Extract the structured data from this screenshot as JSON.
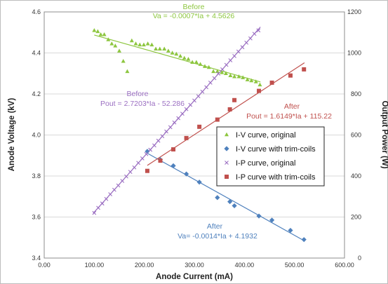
{
  "chart_data": {
    "type": "scatter",
    "xlabel": "Anode Current (mA)",
    "ylabel_left": "Anode Voltage (kV)",
    "ylabel_right": "Output Power (W)",
    "xlim": [
      0,
      600
    ],
    "ylim_left": [
      3.4,
      4.6
    ],
    "ylim_right": [
      0,
      1200
    ],
    "x_ticks": [
      "0.00",
      "100.00",
      "200.00",
      "300.00",
      "400.00",
      "500.00",
      "600.00"
    ],
    "y_left_ticks": [
      "3.4",
      "3.6",
      "3.8",
      "4.0",
      "4.2",
      "4.4",
      "4.6"
    ],
    "y_right_ticks": [
      "0",
      "200",
      "400",
      "600",
      "800",
      "1000",
      "1200"
    ],
    "grid": "horizontal",
    "legend_position": "right-middle",
    "series": [
      {
        "name": "I-V curve, original",
        "axis": "left",
        "marker": "triangle",
        "color": "#8dc63f",
        "points": [
          [
            100,
            4.51
          ],
          [
            107,
            4.505
          ],
          [
            113,
            4.49
          ],
          [
            120,
            4.49
          ],
          [
            128,
            4.465
          ],
          [
            135,
            4.445
          ],
          [
            142,
            4.435
          ],
          [
            150,
            4.41
          ],
          [
            158,
            4.36
          ],
          [
            166,
            4.31
          ],
          [
            175,
            4.46
          ],
          [
            183,
            4.445
          ],
          [
            191,
            4.44
          ],
          [
            199,
            4.44
          ],
          [
            207,
            4.445
          ],
          [
            215,
            4.44
          ],
          [
            223,
            4.42
          ],
          [
            231,
            4.42
          ],
          [
            240,
            4.42
          ],
          [
            248,
            4.41
          ],
          [
            256,
            4.4
          ],
          [
            264,
            4.395
          ],
          [
            272,
            4.385
          ],
          [
            280,
            4.375
          ],
          [
            288,
            4.37
          ],
          [
            296,
            4.355
          ],
          [
            304,
            4.355
          ],
          [
            312,
            4.345
          ],
          [
            321,
            4.335
          ],
          [
            329,
            4.33
          ],
          [
            338,
            4.31
          ],
          [
            346,
            4.31
          ],
          [
            355,
            4.305
          ],
          [
            363,
            4.3
          ],
          [
            372,
            4.29
          ],
          [
            380,
            4.285
          ],
          [
            389,
            4.285
          ],
          [
            397,
            4.28
          ],
          [
            406,
            4.27
          ],
          [
            414,
            4.265
          ],
          [
            423,
            4.26
          ],
          [
            431,
            4.245
          ]
        ],
        "fit": {
          "x": [
            100,
            432
          ],
          "label_title": "Before",
          "equation": "Va = -0.0007*Ia + 4.5626"
        }
      },
      {
        "name": "I-V curve with trim-coils",
        "axis": "left",
        "marker": "diamond",
        "color": "#4f81bd",
        "points": [
          [
            206,
            3.92
          ],
          [
            232,
            3.88
          ],
          [
            258,
            3.85
          ],
          [
            284,
            3.81
          ],
          [
            310,
            3.77
          ],
          [
            346,
            3.695
          ],
          [
            371,
            3.675
          ],
          [
            380,
            3.655
          ],
          [
            429,
            3.605
          ],
          [
            455,
            3.585
          ],
          [
            492,
            3.535
          ],
          [
            519,
            3.49
          ]
        ],
        "fit": {
          "x": [
            206,
            520
          ],
          "label_title": "After",
          "equation": "Va= -0.0014*Ia + 4.1932"
        }
      },
      {
        "name": "I-P curve, original",
        "axis": "right",
        "marker": "x",
        "color": "#9b6fc2",
        "points": [
          [
            100,
            220
          ],
          [
            108,
            245
          ],
          [
            116,
            266
          ],
          [
            124,
            288
          ],
          [
            132,
            311
          ],
          [
            140,
            333
          ],
          [
            148,
            354
          ],
          [
            156,
            376
          ],
          [
            164,
            398
          ],
          [
            172,
            420
          ],
          [
            180,
            442
          ],
          [
            188,
            464
          ],
          [
            196,
            486
          ],
          [
            204,
            507
          ],
          [
            212,
            528
          ],
          [
            220,
            549
          ],
          [
            228,
            572
          ],
          [
            236,
            594
          ],
          [
            244,
            617
          ],
          [
            252,
            638
          ],
          [
            260,
            661
          ],
          [
            268,
            682
          ],
          [
            276,
            704
          ],
          [
            284,
            726
          ],
          [
            292,
            747
          ],
          [
            300,
            768
          ],
          [
            308,
            789
          ],
          [
            316,
            811
          ],
          [
            324,
            833
          ],
          [
            332,
            855
          ],
          [
            340,
            877
          ],
          [
            348,
            899
          ],
          [
            356,
            920
          ],
          [
            364,
            942
          ],
          [
            372,
            964
          ],
          [
            380,
            985
          ],
          [
            388,
            1007
          ],
          [
            396,
            1028
          ],
          [
            404,
            1050
          ],
          [
            412,
            1071
          ],
          [
            420,
            1093
          ],
          [
            428,
            1110
          ]
        ],
        "fit": {
          "x": [
            98,
            432
          ],
          "label_title": "Before",
          "equation": "Pout = 2.7203*Ia - 52.286"
        }
      },
      {
        "name": "I-P curve with trim-coils",
        "axis": "right",
        "marker": "square",
        "color": "#c0504d",
        "points": [
          [
            206,
            425
          ],
          [
            232,
            475
          ],
          [
            258,
            530
          ],
          [
            284,
            585
          ],
          [
            310,
            640
          ],
          [
            346,
            675
          ],
          [
            371,
            725
          ],
          [
            380,
            770
          ],
          [
            429,
            815
          ],
          [
            455,
            855
          ],
          [
            492,
            890
          ],
          [
            519,
            920
          ]
        ],
        "fit": {
          "x": [
            206,
            520
          ],
          "label_title": "After",
          "equation": "Pout = 1.6149*Ia + 115.22"
        }
      }
    ]
  }
}
